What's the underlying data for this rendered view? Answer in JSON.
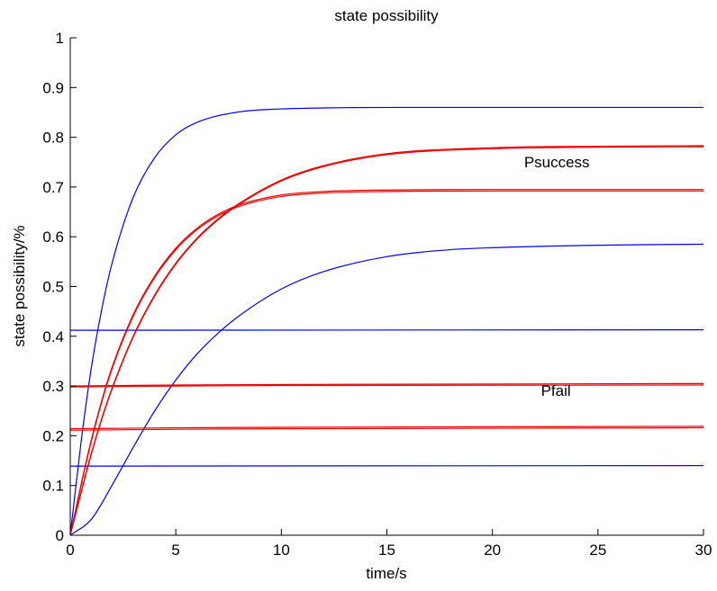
{
  "chart_data": {
    "type": "line",
    "title": "state possibility",
    "xlabel": "time/s",
    "ylabel": "state possibility/%",
    "xlim": [
      0,
      30
    ],
    "ylim": [
      0,
      1
    ],
    "x_ticks": [
      0,
      5,
      10,
      15,
      20,
      25,
      30
    ],
    "y_ticks": [
      0,
      0.1,
      0.2,
      0.3,
      0.4,
      0.5,
      0.6,
      0.7,
      0.8,
      0.9,
      1
    ],
    "x_tick_labels": [
      "0",
      "5",
      "10",
      "15",
      "20",
      "25",
      "30"
    ],
    "y_tick_labels": [
      "0",
      "0.1",
      "0.2",
      "0.3",
      "0.4",
      "0.5",
      "0.6",
      "0.7",
      "0.8",
      "0.9",
      "1"
    ],
    "grid": false,
    "annotations": [
      {
        "text": "Psuccess",
        "x": 21.5,
        "y": 0.74
      },
      {
        "text": "Pfail",
        "x": 22.3,
        "y": 0.28
      }
    ],
    "colors": {
      "blue": "#0000ee",
      "red": "#ee0000",
      "axis": "#000000"
    },
    "series": [
      {
        "color": "blue",
        "x": [
          0,
          0.5,
          1,
          1.5,
          2,
          3,
          4,
          5,
          6,
          8,
          10,
          12,
          15,
          20,
          25,
          30
        ],
        "y": [
          0,
          0.183,
          0.337,
          0.456,
          0.55,
          0.681,
          0.759,
          0.805,
          0.83,
          0.851,
          0.857,
          0.859,
          0.86,
          0.86,
          0.86,
          0.86
        ]
      },
      {
        "color": "blue",
        "x": [
          0,
          1,
          2,
          3,
          4,
          5,
          6,
          7,
          8,
          10,
          12,
          15,
          18,
          20,
          25,
          30
        ],
        "y": [
          0,
          0.032,
          0.102,
          0.178,
          0.25,
          0.312,
          0.364,
          0.406,
          0.441,
          0.495,
          0.53,
          0.56,
          0.574,
          0.578,
          0.583,
          0.585
        ]
      },
      {
        "color": "blue",
        "x": [
          0,
          30
        ],
        "y": [
          0.412,
          0.413
        ]
      },
      {
        "color": "blue",
        "x": [
          0,
          30
        ],
        "y": [
          0.139,
          0.14
        ]
      },
      {
        "color": "red",
        "x": [
          0,
          0.5,
          1,
          1.5,
          2,
          3,
          4,
          5,
          6,
          7,
          8,
          10,
          12,
          15,
          20,
          25,
          30
        ],
        "y": [
          0,
          0.085,
          0.165,
          0.236,
          0.298,
          0.402,
          0.483,
          0.547,
          0.597,
          0.636,
          0.667,
          0.714,
          0.743,
          0.767,
          0.779,
          0.782,
          0.783
        ]
      },
      {
        "color": "red",
        "x": [
          0,
          0.5,
          1,
          1.5,
          2,
          3,
          4,
          5,
          6,
          7,
          8,
          10,
          12,
          15,
          20,
          25,
          30
        ],
        "y": [
          0,
          0.083,
          0.163,
          0.234,
          0.296,
          0.4,
          0.481,
          0.545,
          0.595,
          0.634,
          0.665,
          0.712,
          0.741,
          0.765,
          0.777,
          0.78,
          0.781
        ]
      },
      {
        "color": "red",
        "x": [
          0,
          0.5,
          1,
          1.5,
          2,
          3,
          4,
          5,
          6,
          7,
          8,
          10,
          12,
          15,
          20,
          25,
          30
        ],
        "y": [
          0,
          0.1,
          0.192,
          0.272,
          0.34,
          0.445,
          0.521,
          0.577,
          0.617,
          0.645,
          0.664,
          0.684,
          0.691,
          0.694,
          0.695,
          0.695,
          0.695
        ]
      },
      {
        "color": "red",
        "x": [
          0,
          0.5,
          1,
          1.5,
          2,
          3,
          4,
          5,
          6,
          7,
          8,
          10,
          12,
          15,
          20,
          25,
          30
        ],
        "y": [
          0,
          0.098,
          0.189,
          0.269,
          0.337,
          0.442,
          0.518,
          0.574,
          0.614,
          0.642,
          0.661,
          0.681,
          0.688,
          0.691,
          0.692,
          0.692,
          0.692
        ]
      },
      {
        "color": "red",
        "x": [
          0,
          5,
          10,
          30
        ],
        "y": [
          0.3,
          0.302,
          0.303,
          0.305
        ]
      },
      {
        "color": "red",
        "x": [
          0,
          5,
          10,
          30
        ],
        "y": [
          0.298,
          0.3,
          0.301,
          0.302
        ]
      },
      {
        "color": "red",
        "x": [
          0,
          5,
          10,
          30
        ],
        "y": [
          0.214,
          0.216,
          0.217,
          0.219
        ]
      },
      {
        "color": "red",
        "x": [
          0,
          5,
          10,
          30
        ],
        "y": [
          0.211,
          0.213,
          0.214,
          0.216
        ]
      }
    ]
  }
}
